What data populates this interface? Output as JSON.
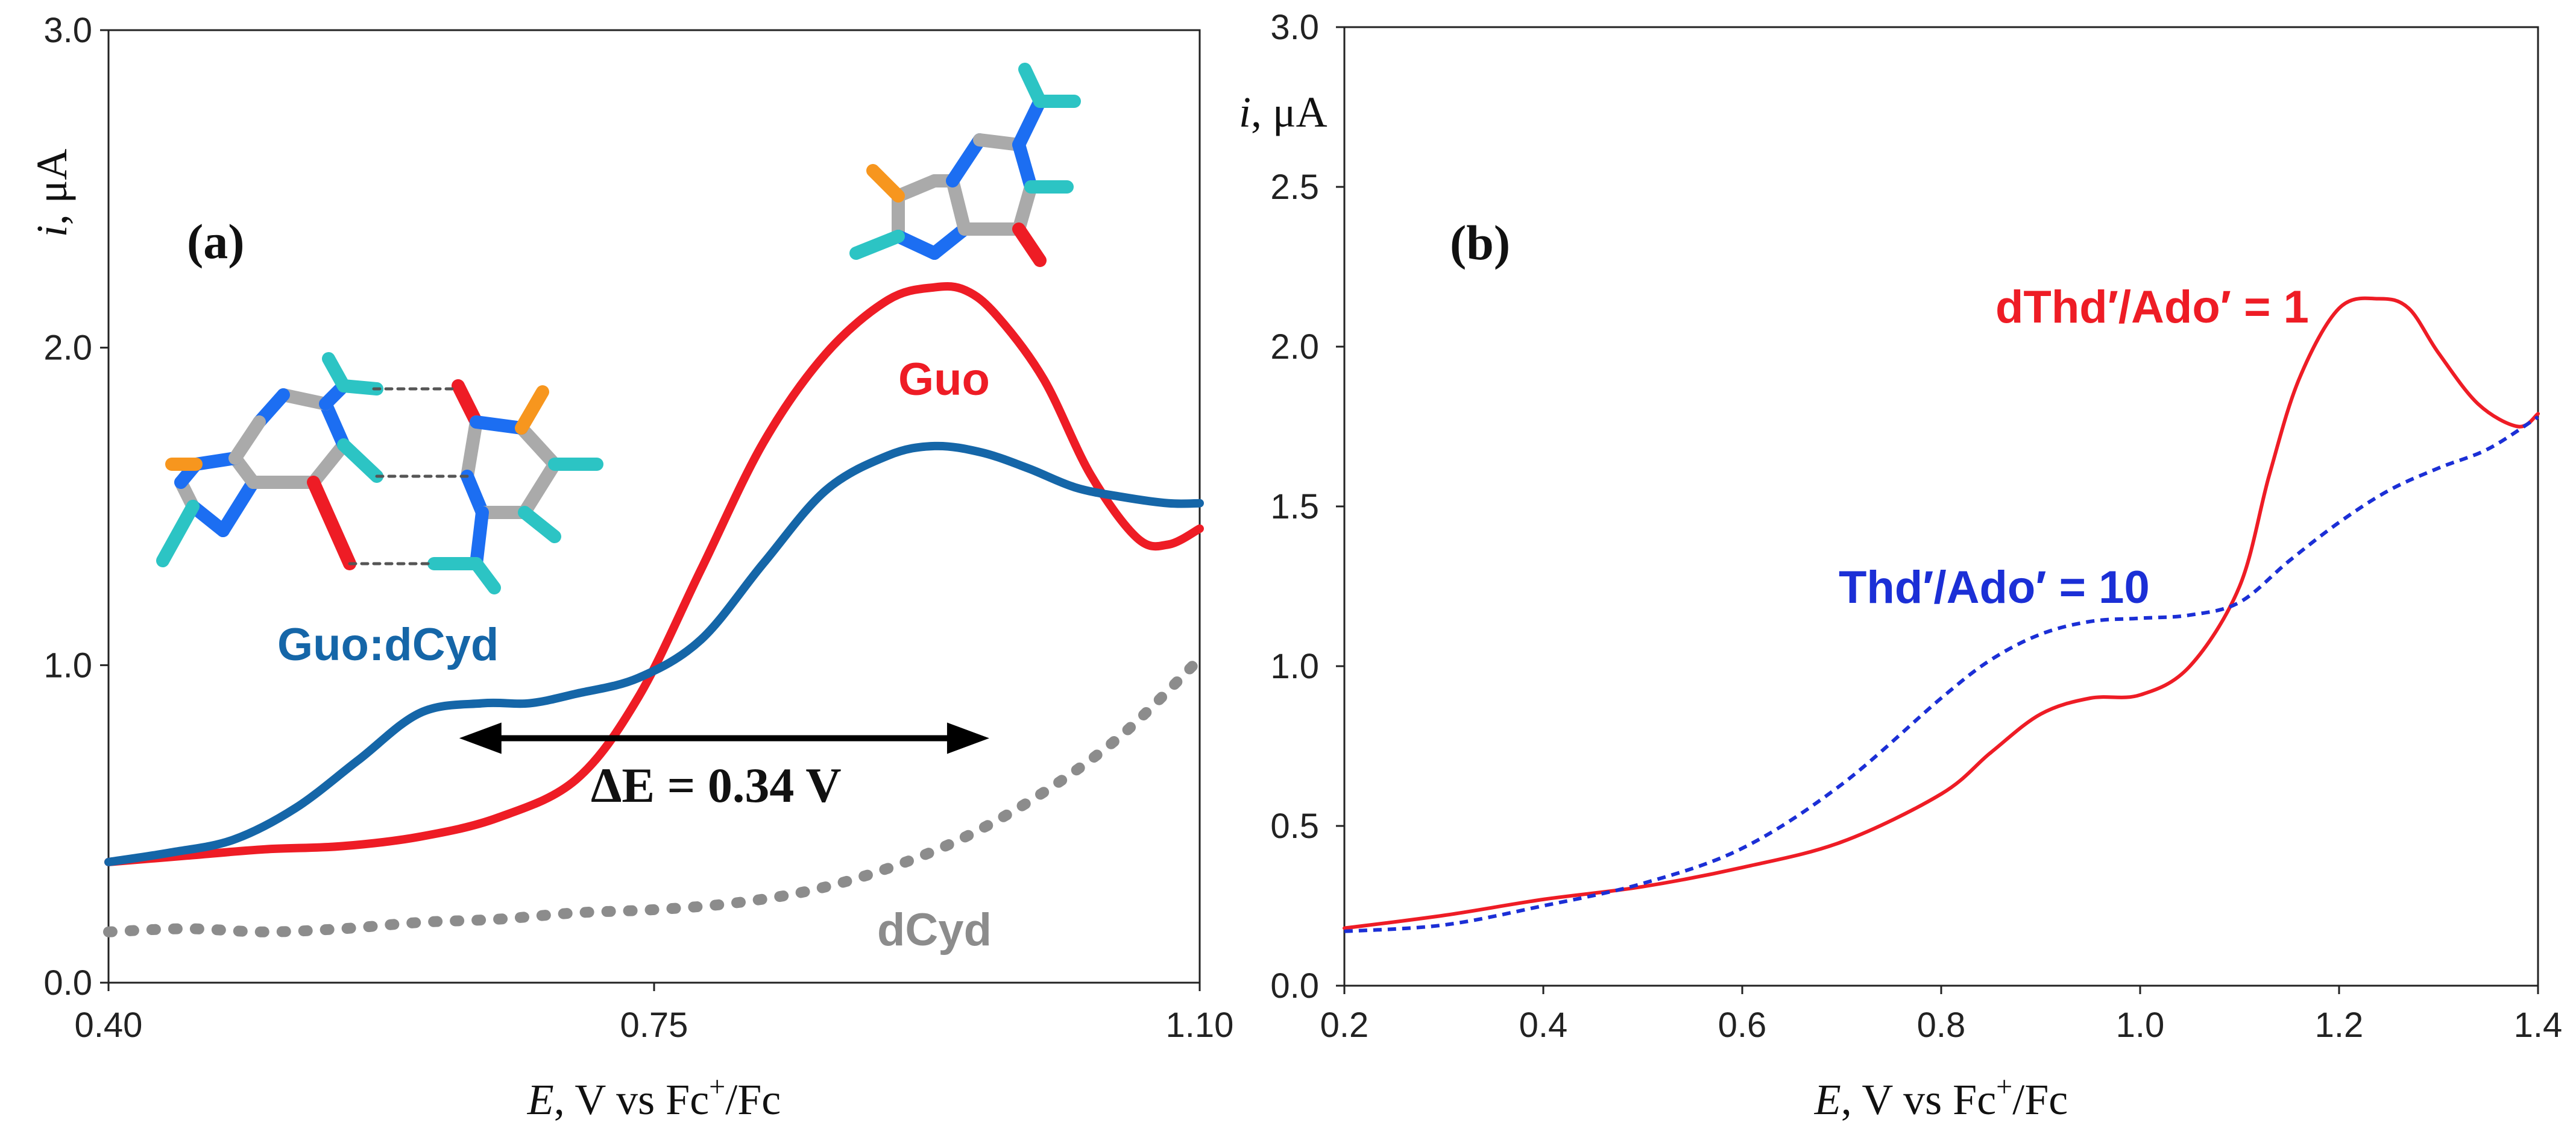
{
  "chart_data": [
    {
      "type": "line",
      "panel_label": "(a)",
      "xlabel_italic": "E",
      "xlabel_rest": ", V vs Fc",
      "xlabel_sup": "+",
      "xlabel_tail": "/Fc",
      "ylabel_italic": "i",
      "ylabel_rest": ", μA",
      "xlim": [
        0.4,
        1.1
      ],
      "ylim": [
        0.0,
        3.0
      ],
      "x_ticks": [
        0.4,
        0.75,
        1.1
      ],
      "x_tick_labels": [
        "0.40",
        "0.75",
        "1.10"
      ],
      "y_ticks": [
        0.0,
        1.0,
        2.0,
        3.0
      ],
      "y_tick_labels": [
        "0.0",
        "1.0",
        "2.0",
        "3.0"
      ],
      "grid": false,
      "series": [
        {
          "name": "Guo",
          "color": "#ee1c25",
          "style": "solid",
          "x": [
            0.4,
            0.45,
            0.5,
            0.55,
            0.6,
            0.65,
            0.7,
            0.74,
            0.78,
            0.82,
            0.86,
            0.9,
            0.93,
            0.95,
            0.97,
            1.0,
            1.03,
            1.06,
            1.08,
            1.1
          ],
          "y": [
            0.38,
            0.4,
            0.42,
            0.43,
            0.46,
            0.52,
            0.64,
            0.9,
            1.3,
            1.7,
            1.98,
            2.15,
            2.19,
            2.18,
            2.1,
            1.9,
            1.6,
            1.4,
            1.38,
            1.43
          ]
        },
        {
          "name": "Guo:dCyd",
          "color": "#1566a8",
          "style": "solid",
          "x": [
            0.4,
            0.44,
            0.48,
            0.52,
            0.56,
            0.6,
            0.64,
            0.67,
            0.7,
            0.74,
            0.78,
            0.82,
            0.86,
            0.9,
            0.93,
            0.96,
            0.99,
            1.02,
            1.05,
            1.08,
            1.1
          ],
          "y": [
            0.38,
            0.41,
            0.45,
            0.55,
            0.7,
            0.85,
            0.88,
            0.88,
            0.91,
            0.96,
            1.08,
            1.32,
            1.55,
            1.66,
            1.69,
            1.67,
            1.62,
            1.56,
            1.53,
            1.51,
            1.51
          ]
        },
        {
          "name": "dCyd",
          "color": "#8c8c8c",
          "style": "dotted",
          "x": [
            0.4,
            0.45,
            0.5,
            0.55,
            0.6,
            0.65,
            0.7,
            0.75,
            0.8,
            0.85,
            0.9,
            0.95,
            1.0,
            1.05,
            1.1
          ],
          "y": [
            0.16,
            0.17,
            0.16,
            0.17,
            0.19,
            0.2,
            0.22,
            0.23,
            0.25,
            0.29,
            0.36,
            0.46,
            0.6,
            0.78,
            1.02
          ]
        }
      ],
      "annotations": {
        "delta_e": "ΔE = 0.34 V",
        "delta_e_range": [
          0.625,
          0.965
        ],
        "delta_e_level": 0.77
      }
    },
    {
      "type": "line",
      "panel_label": "(b)",
      "xlabel_italic": "E",
      "xlabel_rest": ", V vs Fc",
      "xlabel_sup": "+",
      "xlabel_tail": "/Fc",
      "ylabel_italic": "i",
      "ylabel_rest": ", μA",
      "xlim": [
        0.2,
        1.4
      ],
      "ylim": [
        0.0,
        3.0
      ],
      "x_ticks": [
        0.2,
        0.4,
        0.6,
        0.8,
        1.0,
        1.2,
        1.4
      ],
      "x_tick_labels": [
        "0.2",
        "0.4",
        "0.6",
        "0.8",
        "1.0",
        "1.2",
        "1.4"
      ],
      "y_ticks": [
        0.0,
        0.5,
        1.0,
        1.5,
        2.0,
        2.5,
        3.0
      ],
      "y_tick_labels": [
        "0.0",
        "0.5",
        "1.0",
        "1.5",
        "2.0",
        "2.5",
        "3.0"
      ],
      "grid": false,
      "series": [
        {
          "name": "dThd′/Ado′ = 1",
          "color": "#ee1c25",
          "style": "solid",
          "x": [
            0.2,
            0.3,
            0.4,
            0.5,
            0.6,
            0.7,
            0.8,
            0.85,
            0.9,
            0.95,
            1.0,
            1.05,
            1.1,
            1.13,
            1.16,
            1.2,
            1.24,
            1.27,
            1.3,
            1.34,
            1.38,
            1.4
          ],
          "y": [
            0.18,
            0.22,
            0.27,
            0.31,
            0.37,
            0.45,
            0.6,
            0.73,
            0.85,
            0.9,
            0.91,
            1.0,
            1.25,
            1.6,
            1.9,
            2.12,
            2.15,
            2.12,
            1.98,
            1.82,
            1.75,
            1.79
          ]
        },
        {
          "name": "Thd′/Ado′ = 10",
          "color": "#1b2fd6",
          "style": "dashed",
          "x": [
            0.2,
            0.3,
            0.4,
            0.5,
            0.6,
            0.7,
            0.8,
            0.85,
            0.9,
            0.95,
            1.0,
            1.05,
            1.1,
            1.15,
            1.2,
            1.25,
            1.3,
            1.35,
            1.4
          ],
          "y": [
            0.17,
            0.19,
            0.25,
            0.32,
            0.43,
            0.63,
            0.9,
            1.02,
            1.1,
            1.14,
            1.15,
            1.16,
            1.2,
            1.33,
            1.45,
            1.55,
            1.62,
            1.68,
            1.78
          ]
        }
      ],
      "annotations": {}
    }
  ],
  "molecules": {
    "guanine": "guanine-structure",
    "guo_dcyd_pair": "guanine-cytosine-pair-structure"
  }
}
